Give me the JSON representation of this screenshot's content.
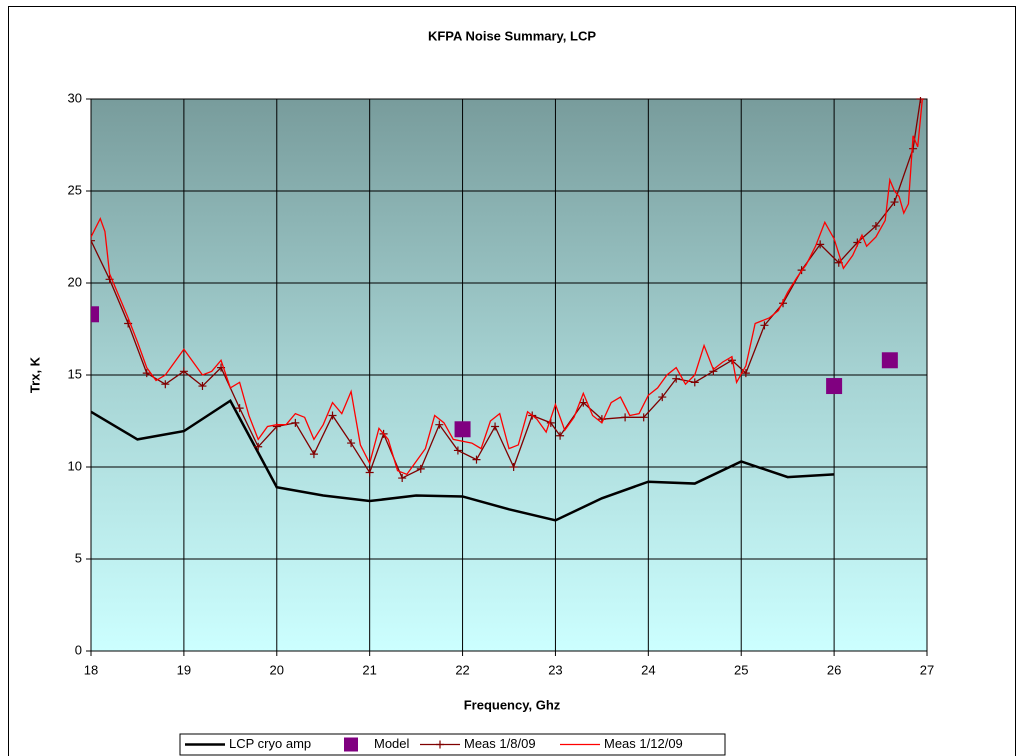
{
  "chart_data": {
    "type": "line",
    "title": "KFPA Noise Summary, LCP",
    "x_label": "Frequency, Ghz",
    "y_label": "Trx, K",
    "xlim": [
      18,
      27
    ],
    "xticks": [
      18,
      19,
      20,
      21,
      22,
      23,
      24,
      25,
      26,
      27
    ],
    "ylim": [
      0,
      30
    ],
    "yticks": [
      0,
      5,
      10,
      15,
      20,
      25,
      30
    ],
    "grid": true,
    "legend": "bottom",
    "series": [
      {
        "name": "LCP cryo amp",
        "color": "#000000",
        "marker": "none",
        "line": true,
        "x": [
          18,
          18.5,
          19,
          19.5,
          20,
          20.5,
          21,
          21.5,
          22,
          22.5,
          23,
          23.5,
          24,
          24.5,
          25,
          25.5,
          26
        ],
        "values": [
          13.0,
          11.5,
          11.95,
          13.6,
          8.9,
          8.45,
          8.15,
          8.45,
          8.4,
          7.7,
          7.1,
          8.3,
          9.2,
          9.1,
          10.3,
          9.45,
          9.6
        ]
      },
      {
        "name": "Model",
        "color": "#800080",
        "marker": "square",
        "line": false,
        "x": [
          18,
          22,
          26,
          26.6
        ],
        "values": [
          18.3,
          12.05,
          14.4,
          15.8
        ]
      },
      {
        "name": "Meas 1/8/09",
        "color": "#800000",
        "marker": "plus",
        "line": true,
        "x": [
          18,
          18.2,
          18.4,
          18.6,
          18.8,
          19.0,
          19.2,
          19.4,
          19.6,
          19.8,
          20.0,
          20.2,
          20.4,
          20.6,
          20.8,
          21.0,
          21.15,
          21.35,
          21.55,
          21.75,
          21.95,
          22.15,
          22.35,
          22.55,
          22.75,
          22.95,
          23.05,
          23.3,
          23.5,
          23.75,
          23.95,
          24.15,
          24.3,
          24.5,
          24.7,
          24.9,
          25.05,
          25.25,
          25.45,
          25.65,
          25.85,
          26.05,
          26.25,
          26.45,
          26.65,
          26.85,
          26.93
        ],
        "values": [
          22.3,
          20.2,
          17.8,
          15.1,
          14.5,
          15.2,
          14.4,
          15.4,
          13.2,
          11.1,
          12.2,
          12.4,
          10.7,
          12.8,
          11.3,
          9.7,
          11.8,
          9.4,
          9.9,
          12.3,
          10.9,
          10.4,
          12.2,
          10.0,
          12.8,
          12.4,
          11.7,
          13.5,
          12.6,
          12.7,
          12.7,
          13.8,
          14.8,
          14.6,
          15.2,
          15.8,
          15.1,
          17.7,
          18.9,
          20.7,
          22.1,
          21.1,
          22.2,
          23.1,
          24.4,
          27.3,
          30
        ]
      },
      {
        "name": "Meas 1/12/09",
        "color": "#ff0000",
        "marker": "none",
        "line": true,
        "x": [
          18.0,
          18.1,
          18.15,
          18.2,
          18.3,
          18.4,
          18.5,
          18.6,
          18.7,
          18.8,
          18.9,
          19.0,
          19.1,
          19.2,
          19.3,
          19.4,
          19.5,
          19.6,
          19.7,
          19.8,
          19.9,
          20.0,
          20.1,
          20.2,
          20.3,
          20.4,
          20.5,
          20.6,
          20.7,
          20.8,
          20.9,
          21.0,
          21.1,
          21.2,
          21.3,
          21.4,
          21.5,
          21.6,
          21.7,
          21.8,
          21.9,
          22.0,
          22.1,
          22.2,
          22.3,
          22.4,
          22.5,
          22.6,
          22.7,
          22.8,
          22.9,
          23.0,
          23.1,
          23.2,
          23.3,
          23.4,
          23.5,
          23.6,
          23.7,
          23.8,
          23.9,
          24.0,
          24.1,
          24.2,
          24.3,
          24.4,
          24.5,
          24.6,
          24.7,
          24.8,
          24.9,
          24.95,
          25.05,
          25.15,
          25.3,
          25.4,
          25.5,
          25.6,
          25.7,
          25.8,
          25.9,
          26.0,
          26.1,
          26.2,
          26.3,
          26.35,
          26.45,
          26.55,
          26.6,
          26.65,
          26.7,
          26.75,
          26.8,
          26.85,
          26.9,
          26.95
        ],
        "values": [
          22.5,
          23.5,
          22.8,
          20.5,
          19.3,
          18.1,
          16.8,
          15.4,
          14.7,
          15.0,
          15.7,
          16.4,
          15.7,
          15.0,
          15.2,
          15.8,
          14.3,
          14.6,
          12.8,
          11.5,
          12.2,
          12.3,
          12.3,
          12.9,
          12.7,
          11.5,
          12.3,
          13.5,
          12.9,
          14.1,
          11.2,
          10.2,
          12.1,
          11.5,
          9.8,
          9.6,
          10.3,
          11.0,
          12.8,
          12.4,
          11.5,
          11.4,
          11.3,
          11.0,
          12.5,
          12.9,
          11.0,
          11.2,
          13.0,
          12.6,
          11.9,
          13.4,
          12.0,
          12.7,
          14.0,
          12.8,
          12.4,
          13.5,
          13.8,
          12.8,
          12.9,
          13.9,
          14.3,
          15.0,
          15.4,
          14.5,
          15.0,
          16.6,
          15.3,
          15.7,
          16.0,
          14.6,
          15.5,
          17.8,
          18.1,
          18.5,
          19.5,
          20.3,
          21.0,
          22.0,
          23.3,
          22.4,
          20.8,
          21.5,
          22.6,
          22.0,
          22.5,
          23.4,
          25.6,
          25.0,
          24.7,
          23.8,
          24.3,
          28.0,
          27.4,
          30
        ]
      }
    ]
  }
}
